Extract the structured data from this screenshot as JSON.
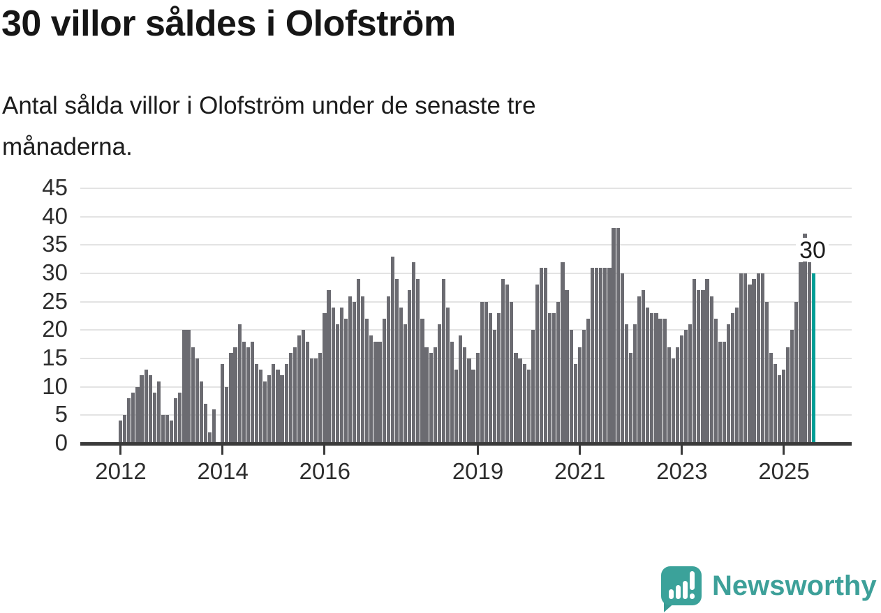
{
  "title": "30 villor såldes i Olofström",
  "subtitle": "Antal sålda villor i Olofström under de senaste tre månaderna.",
  "subtitle_lines": [
    "Antal sålda villor i Olofström under de senaste tre",
    "månaderna."
  ],
  "annotation": {
    "label": "30"
  },
  "branding": {
    "name": "Newsworthy",
    "icon": "bar-chart-speech-bubble-icon"
  },
  "colors": {
    "bar": "#6b6b71",
    "highlight": "#009e96",
    "brand": "#3da099",
    "grid": "#e3e3e3",
    "axis": "#3a3a3a",
    "text": "#1c1c1c"
  },
  "chart_data": {
    "type": "bar",
    "title": "30 villor såldes i Olofström",
    "xlabel": "",
    "ylabel": "",
    "x_start": "2012-01",
    "x_end": "2025-08",
    "x_frequency": "monthly",
    "ylim": [
      0,
      45
    ],
    "y_ticks": [
      0,
      5,
      10,
      15,
      20,
      25,
      30,
      35,
      40,
      45
    ],
    "grid": true,
    "legend": "none",
    "x_ticks": [
      {
        "label": "2012",
        "month_index": 0
      },
      {
        "label": "2014",
        "month_index": 24
      },
      {
        "label": "2016",
        "month_index": 48
      },
      {
        "label": "2019",
        "month_index": 84
      },
      {
        "label": "2021",
        "month_index": 108
      },
      {
        "label": "2023",
        "month_index": 132
      },
      {
        "label": "2025",
        "month_index": 156
      }
    ],
    "values": [
      4,
      5,
      8,
      9,
      10,
      12,
      13,
      12,
      9,
      11,
      5,
      5,
      4,
      8,
      9,
      20,
      20,
      17,
      15,
      11,
      7,
      2,
      6,
      0,
      14,
      10,
      16,
      17,
      21,
      18,
      17,
      18,
      14,
      13,
      11,
      12,
      14,
      13,
      12,
      14,
      16,
      17,
      19,
      20,
      18,
      15,
      15,
      16,
      23,
      27,
      24,
      21,
      24,
      22,
      26,
      25,
      29,
      26,
      22,
      19,
      18,
      18,
      22,
      26,
      33,
      29,
      24,
      21,
      27,
      32,
      29,
      22,
      17,
      16,
      17,
      21,
      29,
      24,
      18,
      13,
      19,
      17,
      15,
      13,
      16,
      25,
      25,
      23,
      20,
      23,
      29,
      28,
      25,
      16,
      15,
      14,
      13,
      20,
      28,
      31,
      31,
      23,
      23,
      25,
      32,
      27,
      20,
      14,
      17,
      20,
      22,
      31,
      31,
      31,
      31,
      31,
      38,
      38,
      30,
      21,
      16,
      21,
      26,
      27,
      24,
      23,
      23,
      22,
      22,
      17,
      15,
      17,
      19,
      20,
      21,
      29,
      27,
      27,
      29,
      26,
      22,
      18,
      18,
      21,
      23,
      24,
      30,
      30,
      28,
      29,
      30,
      30,
      25,
      16,
      14,
      12,
      13,
      17,
      20,
      25,
      32,
      37,
      32,
      30
    ],
    "highlight_last_bar": true,
    "last_value": 30
  }
}
